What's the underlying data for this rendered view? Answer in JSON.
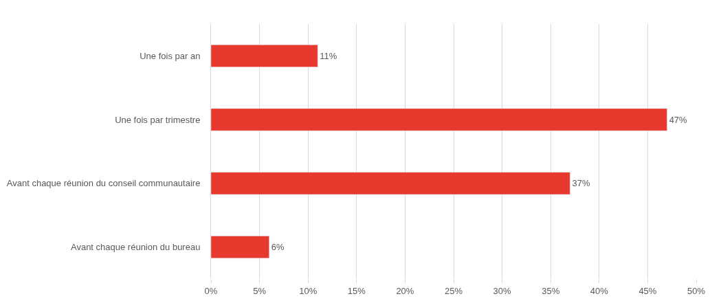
{
  "chart_data": {
    "type": "bar",
    "orientation": "horizontal",
    "categories": [
      "Une fois par an",
      "Une fois par trimestre",
      "Avant chaque réunion du conseil communautaire",
      "Avant chaque réunion du bureau"
    ],
    "values": [
      11,
      47,
      37,
      6
    ],
    "value_labels": [
      "11%",
      "47%",
      "37%",
      "6%"
    ],
    "color": "#e8392e",
    "xlim": [
      0,
      50
    ],
    "xticks": [
      {
        "value": 0,
        "label": "0%"
      },
      {
        "value": 5,
        "label": "5%"
      },
      {
        "value": 10,
        "label": "10%"
      },
      {
        "value": 15,
        "label": "15%"
      },
      {
        "value": 20,
        "label": "20%"
      },
      {
        "value": 25,
        "label": "25%"
      },
      {
        "value": 30,
        "label": "30%"
      },
      {
        "value": 35,
        "label": "35%"
      },
      {
        "value": 40,
        "label": "40%"
      },
      {
        "value": 45,
        "label": "45%"
      },
      {
        "value": 50,
        "label": "50%"
      }
    ],
    "grid": "x",
    "legend": false
  }
}
